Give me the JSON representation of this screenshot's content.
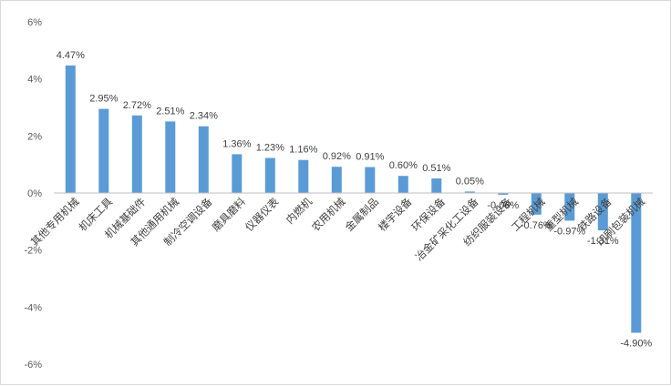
{
  "chart_data": {
    "type": "bar",
    "title": "",
    "xlabel": "",
    "ylabel": "",
    "ylim": [
      -6,
      6
    ],
    "y_ticks": [
      "6%",
      "4%",
      "2%",
      "0%",
      "-2%",
      "-4%",
      "-6%"
    ],
    "y_tick_values": [
      6,
      4,
      2,
      0,
      -2,
      -4,
      -6
    ],
    "grid": false,
    "legend": "none",
    "bar_color": "#5b9bd5",
    "categories": [
      "其他专用机械",
      "机床工具",
      "机械基础件",
      "其他通用机械",
      "制冷空调设备",
      "磨具磨料",
      "仪器仪表",
      "内燃机",
      "农用机械",
      "金属制品",
      "楼宇设备",
      "环保设备",
      "冶金矿采化工设备",
      "纺织服装设备",
      "工程机械",
      "重型机械",
      "铁路设备",
      "印刷包装机械"
    ],
    "values": [
      4.47,
      2.95,
      2.72,
      2.51,
      2.34,
      1.36,
      1.23,
      1.16,
      0.92,
      0.91,
      0.6,
      0.51,
      0.05,
      -0.06,
      -0.76,
      -0.97,
      -1.31,
      -4.9
    ],
    "data_labels": [
      "4.47%",
      "2.95%",
      "2.72%",
      "2.51%",
      "2.34%",
      "1.36%",
      "1.23%",
      "1.16%",
      "0.92%",
      "0.91%",
      "0.60%",
      "0.51%",
      "0.05%",
      "-0.06%",
      "-0.76%",
      "-0.97%",
      "-1.31%",
      "-4.90%"
    ]
  }
}
